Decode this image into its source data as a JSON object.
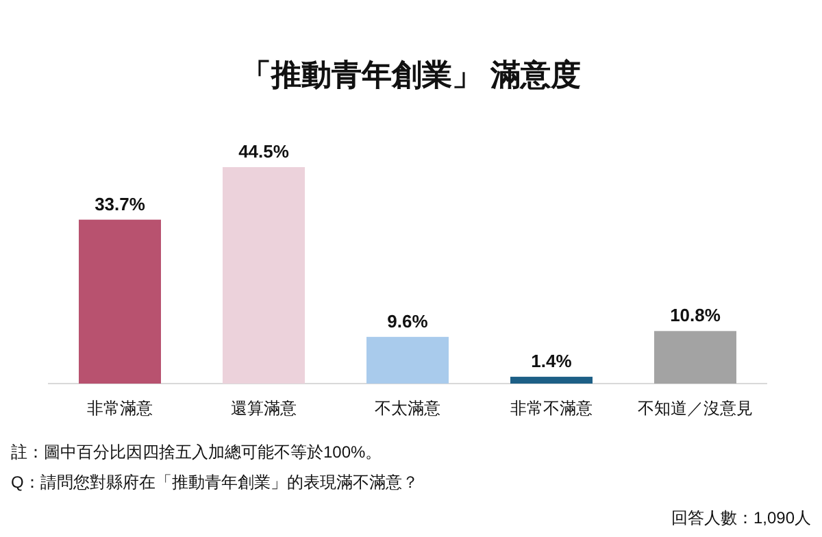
{
  "chart_data": {
    "type": "bar",
    "title": "「推動青年創業」 滿意度",
    "categories": [
      "非常滿意",
      "還算滿意",
      "不太滿意",
      "非常不滿意",
      "不知道／沒意見"
    ],
    "values": [
      33.7,
      44.5,
      9.6,
      1.4,
      10.8
    ],
    "colors": [
      "#b8526f",
      "#ecd2db",
      "#a9cbec",
      "#1d5f86",
      "#a3a3a3"
    ],
    "value_labels": [
      "33.7%",
      "44.5%",
      "9.6%",
      "1.4%",
      "10.8%"
    ],
    "annotations": [
      "註：圖中百分比因四捨五入加總可能不等於100%。",
      "Q：請問您對縣府在「推動青年創業」的表現滿不滿意？",
      "回答人數：1,090人"
    ]
  }
}
